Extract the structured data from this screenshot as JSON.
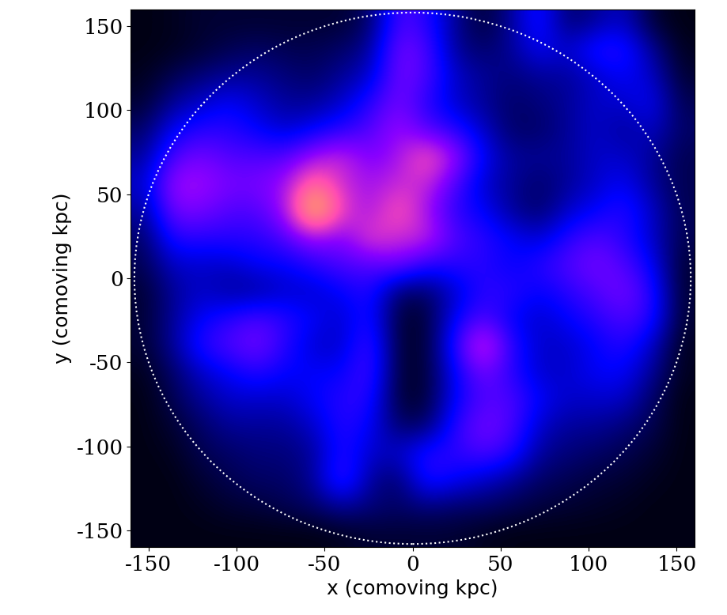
{
  "chart_data": {
    "type": "heatmap",
    "xlabel": "x (comoving kpc)",
    "ylabel": "y (comoving kpc)",
    "xlim": [
      -160,
      160
    ],
    "ylim": [
      -160,
      160
    ],
    "xticks": [
      -150,
      -100,
      -50,
      0,
      50,
      100,
      150
    ],
    "yticks": [
      -150,
      -100,
      -50,
      0,
      50,
      100,
      150
    ],
    "x": [
      -152,
      -136,
      -120,
      -104,
      -88,
      -72,
      -56,
      -40,
      -24,
      -8,
      8,
      24,
      40,
      56,
      72,
      88,
      104,
      120,
      136,
      152
    ],
    "y": [
      152,
      136,
      120,
      104,
      88,
      72,
      56,
      40,
      24,
      8,
      -8,
      -24,
      -40,
      -56,
      -72,
      -88,
      -104,
      -120,
      -136,
      -152
    ],
    "color_range": [
      0,
      1
    ],
    "circle": {
      "center": [
        0,
        0
      ],
      "radius": 158
    },
    "cells": [
      [
        0.02,
        0.03,
        0.05,
        0.05,
        0.05,
        0.05,
        0.05,
        0.05,
        0.1,
        0.35,
        0.3,
        0.15,
        0.05,
        0.15,
        0.3,
        0.1,
        0.15,
        0.2,
        0.05,
        0.02
      ],
      [
        0.02,
        0.03,
        0.05,
        0.08,
        0.1,
        0.08,
        0.08,
        0.1,
        0.15,
        0.4,
        0.35,
        0.15,
        0.1,
        0.15,
        0.25,
        0.2,
        0.3,
        0.3,
        0.15,
        0.03
      ],
      [
        0.03,
        0.08,
        0.12,
        0.15,
        0.15,
        0.12,
        0.1,
        0.15,
        0.2,
        0.4,
        0.35,
        0.2,
        0.15,
        0.12,
        0.15,
        0.15,
        0.2,
        0.25,
        0.2,
        0.05
      ],
      [
        0.05,
        0.15,
        0.2,
        0.25,
        0.2,
        0.15,
        0.15,
        0.2,
        0.3,
        0.4,
        0.3,
        0.2,
        0.15,
        0.1,
        0.12,
        0.15,
        0.2,
        0.2,
        0.25,
        0.08
      ],
      [
        0.1,
        0.25,
        0.3,
        0.3,
        0.25,
        0.2,
        0.25,
        0.3,
        0.35,
        0.45,
        0.35,
        0.3,
        0.2,
        0.1,
        0.1,
        0.15,
        0.2,
        0.15,
        0.2,
        0.1
      ],
      [
        0.15,
        0.35,
        0.4,
        0.35,
        0.35,
        0.35,
        0.45,
        0.5,
        0.4,
        0.45,
        0.6,
        0.45,
        0.25,
        0.15,
        0.15,
        0.15,
        0.2,
        0.2,
        0.15,
        0.08
      ],
      [
        0.2,
        0.45,
        0.45,
        0.4,
        0.4,
        0.45,
        0.65,
        0.5,
        0.45,
        0.5,
        0.5,
        0.35,
        0.2,
        0.15,
        0.1,
        0.15,
        0.2,
        0.25,
        0.15,
        0.08
      ],
      [
        0.15,
        0.4,
        0.4,
        0.35,
        0.35,
        0.45,
        0.85,
        0.55,
        0.45,
        0.6,
        0.45,
        0.3,
        0.25,
        0.15,
        0.1,
        0.2,
        0.25,
        0.3,
        0.2,
        0.08
      ],
      [
        0.1,
        0.3,
        0.3,
        0.3,
        0.3,
        0.35,
        0.45,
        0.4,
        0.55,
        0.5,
        0.5,
        0.35,
        0.3,
        0.25,
        0.2,
        0.3,
        0.35,
        0.3,
        0.2,
        0.08
      ],
      [
        0.08,
        0.2,
        0.2,
        0.2,
        0.25,
        0.25,
        0.3,
        0.35,
        0.35,
        0.4,
        0.3,
        0.3,
        0.3,
        0.25,
        0.3,
        0.35,
        0.4,
        0.35,
        0.25,
        0.05
      ],
      [
        0.05,
        0.15,
        0.2,
        0.15,
        0.15,
        0.2,
        0.2,
        0.25,
        0.3,
        0.1,
        0.1,
        0.2,
        0.3,
        0.3,
        0.25,
        0.3,
        0.35,
        0.4,
        0.3,
        0.05
      ],
      [
        0.05,
        0.15,
        0.25,
        0.3,
        0.35,
        0.3,
        0.25,
        0.2,
        0.3,
        0.05,
        0.05,
        0.25,
        0.35,
        0.25,
        0.2,
        0.25,
        0.3,
        0.35,
        0.3,
        0.05
      ],
      [
        0.05,
        0.15,
        0.3,
        0.35,
        0.4,
        0.3,
        0.2,
        0.2,
        0.35,
        0.05,
        0.05,
        0.3,
        0.55,
        0.3,
        0.2,
        0.2,
        0.25,
        0.3,
        0.2,
        0.03
      ],
      [
        0.03,
        0.1,
        0.2,
        0.25,
        0.3,
        0.25,
        0.25,
        0.25,
        0.35,
        0.05,
        0.05,
        0.25,
        0.4,
        0.3,
        0.2,
        0.2,
        0.25,
        0.25,
        0.15,
        0.03
      ],
      [
        0.02,
        0.08,
        0.15,
        0.2,
        0.2,
        0.2,
        0.25,
        0.3,
        0.3,
        0.05,
        0.05,
        0.25,
        0.35,
        0.35,
        0.25,
        0.2,
        0.2,
        0.2,
        0.1,
        0.02
      ],
      [
        0.02,
        0.05,
        0.1,
        0.15,
        0.15,
        0.15,
        0.2,
        0.3,
        0.25,
        0.1,
        0.1,
        0.3,
        0.4,
        0.35,
        0.2,
        0.15,
        0.15,
        0.12,
        0.08,
        0.02
      ],
      [
        0.02,
        0.03,
        0.08,
        0.1,
        0.12,
        0.12,
        0.15,
        0.3,
        0.2,
        0.2,
        0.3,
        0.3,
        0.35,
        0.3,
        0.15,
        0.12,
        0.1,
        0.08,
        0.05,
        0.02
      ],
      [
        0.02,
        0.02,
        0.05,
        0.08,
        0.1,
        0.1,
        0.15,
        0.35,
        0.15,
        0.1,
        0.3,
        0.25,
        0.2,
        0.15,
        0.1,
        0.08,
        0.06,
        0.05,
        0.03,
        0.02
      ],
      [
        0.02,
        0.02,
        0.03,
        0.05,
        0.06,
        0.08,
        0.1,
        0.15,
        0.12,
        0.1,
        0.12,
        0.1,
        0.1,
        0.08,
        0.06,
        0.05,
        0.04,
        0.03,
        0.02,
        0.02
      ],
      [
        0.02,
        0.02,
        0.02,
        0.02,
        0.02,
        0.02,
        0.02,
        0.03,
        0.05,
        0.05,
        0.05,
        0.05,
        0.03,
        0.02,
        0.02,
        0.02,
        0.02,
        0.02,
        0.02,
        0.02
      ]
    ]
  }
}
